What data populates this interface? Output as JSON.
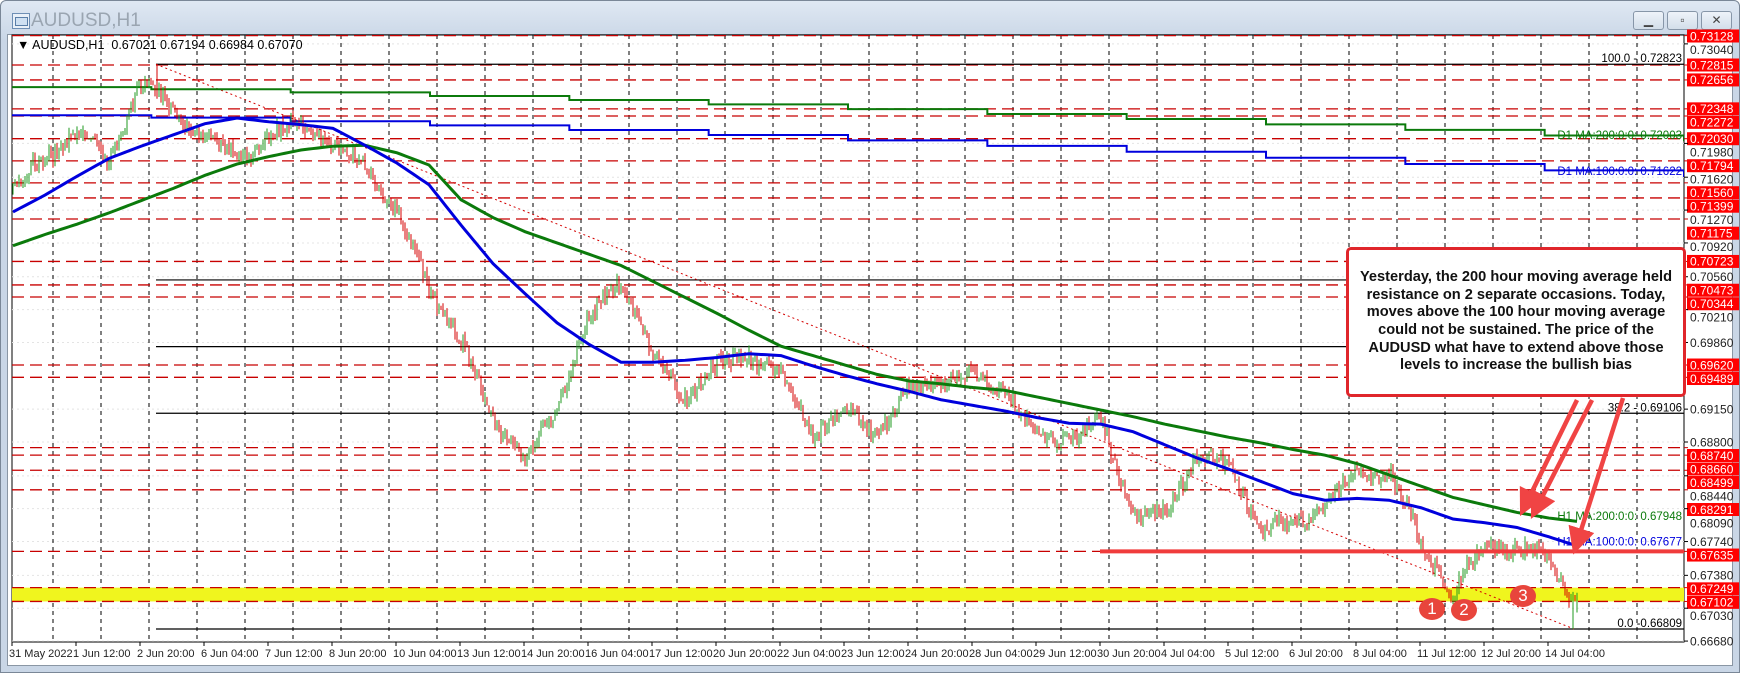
{
  "window": {
    "title": "AUDUSD,H1",
    "buttons": {
      "minimize": "▁",
      "restore": "▫",
      "close": "✕"
    }
  },
  "header": {
    "symbol_label": "AUDUSD,H1",
    "open": "0.67021",
    "high": "0.67194",
    "low": "0.66984",
    "close": "0.67070"
  },
  "annotation": {
    "text": "Yesterday, the 200 hour moving average held resistance on 2 separate occasions. Today, moves above the 100 hour moving average could not be sustained. The price of the AUDUSD what have to extend above those levels to increase the bullish bias",
    "markers": [
      "1",
      "2",
      "3"
    ]
  },
  "colors": {
    "bull": "#1f9a1f",
    "bear": "#d40000",
    "ma100": "#0000dd",
    "ma200": "#0b7a0b",
    "level": "#c80000",
    "level_label_bg": "#ff0000",
    "zone": "#f0f51e",
    "annotation": "#e0262b"
  },
  "chart_data": {
    "type": "candlestick",
    "symbol": "AUDUSD",
    "timeframe": "H1",
    "x_tick_labels": [
      "31 May 2022",
      "1 Jun 12:00",
      "2 Jun 20:00",
      "6 Jun 04:00",
      "7 Jun 12:00",
      "8 Jun 20:00",
      "10 Jun 04:00",
      "13 Jun 12:00",
      "14 Jun 20:00",
      "16 Jun 04:00",
      "17 Jun 12:00",
      "20 Jun 20:00",
      "22 Jun 04:00",
      "23 Jun 12:00",
      "24 Jun 20:00",
      "28 Jun 04:00",
      "29 Jun 12:00",
      "30 Jun 20:00",
      "4 Jul 04:00",
      "5 Jul 12:00",
      "6 Jul 20:00",
      "8 Jul 04:00",
      "11 Jul 12:00",
      "12 Jul 20:00",
      "14 Jul 04:00"
    ],
    "y_tick_labels": [
      "0.73040",
      "0.71980",
      "0.71620",
      "0.71270",
      "0.70920",
      "0.70560",
      "0.70210",
      "0.69860",
      "0.69150",
      "0.68800",
      "0.68440",
      "0.68090",
      "0.67740",
      "0.67380",
      "0.67030",
      "0.66680"
    ],
    "ylim": [
      0.6668,
      0.73128
    ],
    "times": [
      "31 May 04:00",
      "31 May 20:00",
      "1 Jun 12:00",
      "2 Jun 04:00",
      "2 Jun 20:00",
      "3 Jun 12:00",
      "6 Jun 04:00",
      "6 Jun 20:00",
      "7 Jun 12:00",
      "8 Jun 04:00",
      "8 Jun 20:00",
      "9 Jun 12:00",
      "10 Jun 04:00",
      "10 Jun 20:00",
      "13 Jun 12:00",
      "14 Jun 04:00",
      "14 Jun 20:00",
      "15 Jun 12:00",
      "16 Jun 04:00",
      "16 Jun 20:00",
      "17 Jun 12:00",
      "20 Jun 04:00",
      "20 Jun 20:00",
      "21 Jun 12:00",
      "22 Jun 04:00",
      "22 Jun 20:00",
      "23 Jun 12:00",
      "24 Jun 04:00",
      "24 Jun 20:00",
      "27 Jun 12:00",
      "28 Jun 04:00",
      "28 Jun 20:00",
      "29 Jun 12:00",
      "30 Jun 04:00",
      "30 Jun 20:00",
      "1 Jul 12:00",
      "4 Jul 04:00",
      "4 Jul 20:00",
      "5 Jul 12:00",
      "6 Jul 04:00",
      "6 Jul 20:00",
      "7 Jul 12:00",
      "8 Jul 04:00",
      "8 Jul 20:00",
      "11 Jul 12:00",
      "12 Jul 04:00",
      "12 Jul 20:00",
      "13 Jul 12:00",
      "14 Jul 04:00",
      "14 Jul 20:00"
    ],
    "close": [
      0.7149,
      0.7183,
      0.7212,
      0.7178,
      0.7262,
      0.7236,
      0.7205,
      0.7185,
      0.72,
      0.7225,
      0.7192,
      0.7175,
      0.712,
      0.7048,
      0.6985,
      0.6909,
      0.6858,
      0.692,
      0.701,
      0.7055,
      0.697,
      0.693,
      0.696,
      0.6974,
      0.695,
      0.689,
      0.6915,
      0.689,
      0.6935,
      0.6946,
      0.695,
      0.6935,
      0.6885,
      0.6885,
      0.6899,
      0.6804,
      0.68,
      0.687,
      0.685,
      0.679,
      0.679,
      0.6815,
      0.6845,
      0.685,
      0.677,
      0.6722,
      0.677,
      0.6768,
      0.6755,
      0.67
    ],
    "h1_ma100": [
      0.7125,
      0.7143,
      0.7163,
      0.7182,
      0.7195,
      0.7207,
      0.7219,
      0.7225,
      0.7221,
      0.7218,
      0.7214,
      0.7196,
      0.7177,
      0.7154,
      0.7111,
      0.707,
      0.7038,
      0.7007,
      0.6984,
      0.6965,
      0.6965,
      0.6967,
      0.697,
      0.6974,
      0.6972,
      0.6961,
      0.6951,
      0.6942,
      0.6934,
      0.6925,
      0.6919,
      0.6913,
      0.6906,
      0.69,
      0.6899,
      0.6891,
      0.6877,
      0.6863,
      0.6851,
      0.6838,
      0.6825,
      0.6818,
      0.682,
      0.6818,
      0.681,
      0.6798,
      0.6794,
      0.6789,
      0.6779,
      0.6768
    ],
    "h1_ma200": [
      0.7089,
      0.7101,
      0.7112,
      0.7124,
      0.7137,
      0.715,
      0.7164,
      0.7176,
      0.7184,
      0.7191,
      0.7195,
      0.7196,
      0.7188,
      0.7175,
      0.7138,
      0.7119,
      0.7104,
      0.7092,
      0.708,
      0.7068,
      0.7051,
      0.7034,
      0.7017,
      0.6999,
      0.6982,
      0.6972,
      0.6962,
      0.6952,
      0.6945,
      0.6942,
      0.6938,
      0.6935,
      0.6928,
      0.6921,
      0.6914,
      0.6907,
      0.6899,
      0.6892,
      0.6885,
      0.6879,
      0.6872,
      0.6866,
      0.6857,
      0.6845,
      0.6833,
      0.6821,
      0.6813,
      0.6805,
      0.6799,
      0.6795
    ],
    "d1_ma200": {
      "start": 0.7258,
      "end": 0.72003
    },
    "d1_ma100": {
      "start": 0.7228,
      "end": 0.71622
    },
    "swing_high": 0.72823,
    "swing_low": 0.66809,
    "ma_labels": [
      {
        "text": "D1 MA:200:0:0: 0.72003",
        "price": 0.72003,
        "series": "ma200"
      },
      {
        "text": "D1 MA:100:0:0: 0.71622",
        "price": 0.71622,
        "series": "ma100"
      },
      {
        "text": "H1 MA:200:0:0: 0.67948",
        "price": 0.67948,
        "series": "ma200"
      },
      {
        "text": "H1 MA:100:0:0: 0.67677",
        "price": 0.67677,
        "series": "ma100"
      }
    ],
    "fib_levels": [
      {
        "label": "100.0 - 0.72823",
        "price": 0.72823
      },
      {
        "label": "",
        "price": 0.70526
      },
      {
        "label": "",
        "price": 0.69816
      },
      {
        "label": "38.2 - 0.69106",
        "price": 0.69106
      },
      {
        "label": "0.0 -0.66809",
        "price": 0.66809
      }
    ],
    "levels": [
      "0.73128",
      "0.72815",
      "0.72656",
      "0.72348",
      "0.72272",
      "0.72030",
      "0.71794",
      "0.71560",
      "0.71399",
      "0.71175",
      "0.70723",
      "0.70473",
      "0.70344",
      "0.69620",
      "0.69489",
      "0.68740",
      "0.68660",
      "0.68499",
      "0.68291",
      "0.67635",
      "0.67249",
      "0.67102"
    ],
    "support_line": {
      "price": 0.67635,
      "from": "30 Jun 20:00"
    },
    "zone": [
      0.67102,
      0.67249
    ]
  }
}
